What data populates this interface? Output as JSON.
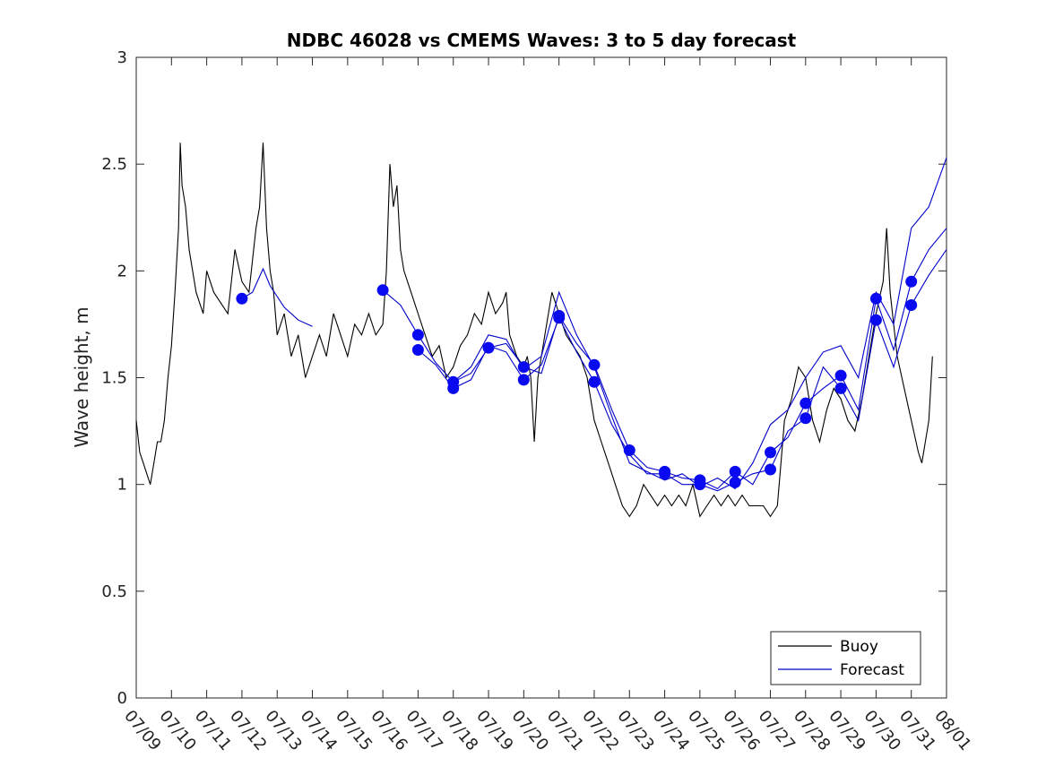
{
  "chart_data": {
    "type": "line",
    "title": "NDBC 46028 vs CMEMS Waves: 3 to 5 day forecast",
    "xlabel": "",
    "ylabel": "Wave height, m",
    "x_ticks": [
      "07/09",
      "07/10",
      "07/11",
      "07/12",
      "07/13",
      "07/14",
      "07/15",
      "07/16",
      "07/17",
      "07/18",
      "07/19",
      "07/20",
      "07/21",
      "07/22",
      "07/23",
      "07/24",
      "07/25",
      "07/26",
      "07/27",
      "07/28",
      "07/29",
      "07/30",
      "07/31",
      "08/01"
    ],
    "y_ticks": [
      "0",
      "0.5",
      "1",
      "1.5",
      "2",
      "2.5",
      "3"
    ],
    "xlim_days": [
      0,
      23
    ],
    "ylim": [
      0,
      3
    ],
    "grid": false,
    "legend_position": "bottom-right",
    "series": [
      {
        "name": "Buoy",
        "color": "#000000",
        "points": [
          [
            0.0,
            1.3
          ],
          [
            0.1,
            1.15
          ],
          [
            0.2,
            1.1
          ],
          [
            0.3,
            1.05
          ],
          [
            0.4,
            1.0
          ],
          [
            0.5,
            1.1
          ],
          [
            0.6,
            1.2
          ],
          [
            0.7,
            1.2
          ],
          [
            0.8,
            1.3
          ],
          [
            0.9,
            1.5
          ],
          [
            1.0,
            1.65
          ],
          [
            1.1,
            1.9
          ],
          [
            1.2,
            2.2
          ],
          [
            1.25,
            2.6
          ],
          [
            1.3,
            2.4
          ],
          [
            1.4,
            2.3
          ],
          [
            1.5,
            2.1
          ],
          [
            1.6,
            2.0
          ],
          [
            1.7,
            1.9
          ],
          [
            1.8,
            1.85
          ],
          [
            1.9,
            1.8
          ],
          [
            2.0,
            2.0
          ],
          [
            2.2,
            1.9
          ],
          [
            2.4,
            1.85
          ],
          [
            2.6,
            1.8
          ],
          [
            2.8,
            2.1
          ],
          [
            3.0,
            1.95
          ],
          [
            3.2,
            1.9
          ],
          [
            3.4,
            2.2
          ],
          [
            3.5,
            2.3
          ],
          [
            3.6,
            2.6
          ],
          [
            3.7,
            2.2
          ],
          [
            3.8,
            2.0
          ],
          [
            3.9,
            1.9
          ],
          [
            4.0,
            1.7
          ],
          [
            4.2,
            1.8
          ],
          [
            4.4,
            1.6
          ],
          [
            4.6,
            1.7
          ],
          [
            4.8,
            1.5
          ],
          [
            5.0,
            1.6
          ],
          [
            5.2,
            1.7
          ],
          [
            5.4,
            1.6
          ],
          [
            5.6,
            1.8
          ],
          [
            5.8,
            1.7
          ],
          [
            6.0,
            1.6
          ],
          [
            6.2,
            1.75
          ],
          [
            6.4,
            1.7
          ],
          [
            6.6,
            1.8
          ],
          [
            6.8,
            1.7
          ],
          [
            7.0,
            1.75
          ],
          [
            7.1,
            2.0
          ],
          [
            7.2,
            2.5
          ],
          [
            7.3,
            2.3
          ],
          [
            7.4,
            2.4
          ],
          [
            7.5,
            2.1
          ],
          [
            7.6,
            2.0
          ],
          [
            7.8,
            1.9
          ],
          [
            8.0,
            1.8
          ],
          [
            8.2,
            1.7
          ],
          [
            8.4,
            1.6
          ],
          [
            8.6,
            1.65
          ],
          [
            8.8,
            1.5
          ],
          [
            9.0,
            1.55
          ],
          [
            9.2,
            1.65
          ],
          [
            9.4,
            1.7
          ],
          [
            9.6,
            1.8
          ],
          [
            9.8,
            1.75
          ],
          [
            10.0,
            1.9
          ],
          [
            10.2,
            1.8
          ],
          [
            10.4,
            1.85
          ],
          [
            10.5,
            1.9
          ],
          [
            10.6,
            1.7
          ],
          [
            10.8,
            1.6
          ],
          [
            11.0,
            1.55
          ],
          [
            11.1,
            1.6
          ],
          [
            11.2,
            1.5
          ],
          [
            11.3,
            1.2
          ],
          [
            11.4,
            1.5
          ],
          [
            11.6,
            1.7
          ],
          [
            11.8,
            1.9
          ],
          [
            12.0,
            1.8
          ],
          [
            12.2,
            1.7
          ],
          [
            12.4,
            1.65
          ],
          [
            12.6,
            1.6
          ],
          [
            12.8,
            1.5
          ],
          [
            13.0,
            1.3
          ],
          [
            13.2,
            1.2
          ],
          [
            13.4,
            1.1
          ],
          [
            13.6,
            1.0
          ],
          [
            13.8,
            0.9
          ],
          [
            14.0,
            0.85
          ],
          [
            14.2,
            0.9
          ],
          [
            14.4,
            1.0
          ],
          [
            14.6,
            0.95
          ],
          [
            14.8,
            0.9
          ],
          [
            15.0,
            0.95
          ],
          [
            15.2,
            0.9
          ],
          [
            15.4,
            0.95
          ],
          [
            15.6,
            0.9
          ],
          [
            15.8,
            1.0
          ],
          [
            16.0,
            0.85
          ],
          [
            16.2,
            0.9
          ],
          [
            16.4,
            0.95
          ],
          [
            16.6,
            0.9
          ],
          [
            16.8,
            0.95
          ],
          [
            17.0,
            0.9
          ],
          [
            17.2,
            0.95
          ],
          [
            17.4,
            0.9
          ],
          [
            17.6,
            0.9
          ],
          [
            17.8,
            0.9
          ],
          [
            18.0,
            0.85
          ],
          [
            18.2,
            0.9
          ],
          [
            18.3,
            1.1
          ],
          [
            18.4,
            1.3
          ],
          [
            18.6,
            1.4
          ],
          [
            18.8,
            1.55
          ],
          [
            19.0,
            1.5
          ],
          [
            19.2,
            1.3
          ],
          [
            19.4,
            1.2
          ],
          [
            19.6,
            1.35
          ],
          [
            19.8,
            1.45
          ],
          [
            20.0,
            1.4
          ],
          [
            20.2,
            1.3
          ],
          [
            20.4,
            1.25
          ],
          [
            20.6,
            1.4
          ],
          [
            20.8,
            1.6
          ],
          [
            21.0,
            1.8
          ],
          [
            21.2,
            1.95
          ],
          [
            21.3,
            2.2
          ],
          [
            21.4,
            1.9
          ],
          [
            21.6,
            1.6
          ],
          [
            21.8,
            1.45
          ],
          [
            22.0,
            1.3
          ],
          [
            22.2,
            1.15
          ],
          [
            22.3,
            1.1
          ],
          [
            22.5,
            1.3
          ],
          [
            22.6,
            1.6
          ]
        ]
      },
      {
        "name": "Forecast",
        "color": "#0000cc",
        "traces": [
          [
            [
              3.0,
              1.87
            ],
            [
              3.3,
              1.9
            ],
            [
              3.6,
              2.01
            ],
            [
              3.8,
              1.93
            ],
            [
              4.2,
              1.83
            ],
            [
              4.6,
              1.77
            ],
            [
              5.0,
              1.74
            ]
          ],
          [
            [
              7.0,
              1.91
            ],
            [
              7.5,
              1.84
            ],
            [
              8.0,
              1.7
            ],
            [
              8.5,
              1.57
            ],
            [
              9.0,
              1.48
            ],
            [
              9.5,
              1.52
            ],
            [
              10.0,
              1.64
            ],
            [
              10.5,
              1.66
            ],
            [
              11.0,
              1.55
            ],
            [
              11.5,
              1.52
            ],
            [
              12.0,
              1.79
            ],
            [
              12.5,
              1.66
            ],
            [
              13.0,
              1.56
            ],
            [
              13.5,
              1.35
            ],
            [
              14.0,
              1.16
            ],
            [
              14.5,
              1.08
            ],
            [
              15.0,
              1.06
            ],
            [
              15.5,
              1.03
            ],
            [
              16.0,
              1.02
            ],
            [
              16.5,
              0.98
            ],
            [
              17.0,
              1.06
            ],
            [
              17.5,
              1.0
            ],
            [
              18.0,
              1.15
            ],
            [
              18.5,
              1.22
            ],
            [
              19.0,
              1.38
            ],
            [
              19.5,
              1.45
            ],
            [
              20.0,
              1.51
            ],
            [
              20.5,
              1.35
            ],
            [
              21.0,
              1.87
            ],
            [
              21.5,
              1.63
            ],
            [
              22.0,
              1.95
            ],
            [
              22.5,
              2.1
            ],
            [
              23.0,
              2.2
            ]
          ],
          [
            [
              8.0,
              1.63
            ],
            [
              8.5,
              1.56
            ],
            [
              9.0,
              1.45
            ],
            [
              9.5,
              1.49
            ],
            [
              10.0,
              1.65
            ],
            [
              10.5,
              1.62
            ],
            [
              11.0,
              1.49
            ],
            [
              11.5,
              1.56
            ],
            [
              12.0,
              1.78
            ],
            [
              12.5,
              1.62
            ],
            [
              13.0,
              1.48
            ],
            [
              13.5,
              1.28
            ],
            [
              14.0,
              1.14
            ],
            [
              14.5,
              1.05
            ],
            [
              15.0,
              1.05
            ],
            [
              15.5,
              1.0
            ],
            [
              16.0,
              1.0
            ],
            [
              16.5,
              0.97
            ],
            [
              17.0,
              1.01
            ],
            [
              17.5,
              1.05
            ],
            [
              18.0,
              1.07
            ],
            [
              18.5,
              1.25
            ],
            [
              19.0,
              1.31
            ],
            [
              19.5,
              1.55
            ],
            [
              20.0,
              1.45
            ],
            [
              20.5,
              1.3
            ],
            [
              21.0,
              1.77
            ],
            [
              21.5,
              1.55
            ],
            [
              22.0,
              1.84
            ],
            [
              22.5,
              1.98
            ],
            [
              23.0,
              2.1
            ]
          ],
          [
            [
              9.0,
              1.48
            ],
            [
              9.5,
              1.55
            ],
            [
              10.0,
              1.7
            ],
            [
              10.5,
              1.68
            ],
            [
              11.0,
              1.54
            ],
            [
              11.5,
              1.6
            ],
            [
              12.0,
              1.9
            ],
            [
              12.5,
              1.7
            ],
            [
              13.0,
              1.55
            ],
            [
              13.5,
              1.32
            ],
            [
              14.0,
              1.1
            ],
            [
              14.5,
              1.06
            ],
            [
              15.0,
              1.02
            ],
            [
              15.5,
              1.05
            ],
            [
              16.0,
              0.99
            ],
            [
              16.5,
              1.03
            ],
            [
              17.0,
              0.98
            ],
            [
              17.5,
              1.1
            ],
            [
              18.0,
              1.28
            ],
            [
              18.5,
              1.35
            ],
            [
              19.0,
              1.5
            ],
            [
              19.5,
              1.62
            ],
            [
              20.0,
              1.65
            ],
            [
              20.5,
              1.5
            ],
            [
              21.0,
              1.9
            ],
            [
              21.5,
              1.75
            ],
            [
              22.0,
              2.2
            ],
            [
              22.5,
              2.3
            ],
            [
              23.0,
              2.53
            ]
          ]
        ],
        "markers": [
          [
            3.0,
            1.87
          ],
          [
            7.0,
            1.91
          ],
          [
            8.0,
            1.7
          ],
          [
            8.0,
            1.63
          ],
          [
            9.0,
            1.48
          ],
          [
            9.0,
            1.45
          ],
          [
            10.0,
            1.64
          ],
          [
            11.0,
            1.55
          ],
          [
            11.0,
            1.49
          ],
          [
            12.0,
            1.79
          ],
          [
            12.0,
            1.78
          ],
          [
            13.0,
            1.56
          ],
          [
            13.0,
            1.48
          ],
          [
            14.0,
            1.16
          ],
          [
            15.0,
            1.06
          ],
          [
            15.0,
            1.05
          ],
          [
            16.0,
            1.02
          ],
          [
            16.0,
            1.0
          ],
          [
            17.0,
            1.06
          ],
          [
            17.0,
            1.01
          ],
          [
            18.0,
            1.15
          ],
          [
            18.0,
            1.07
          ],
          [
            19.0,
            1.38
          ],
          [
            19.0,
            1.31
          ],
          [
            20.0,
            1.51
          ],
          [
            20.0,
            1.45
          ],
          [
            21.0,
            1.87
          ],
          [
            21.0,
            1.77
          ],
          [
            22.0,
            1.95
          ],
          [
            22.0,
            1.84
          ]
        ]
      }
    ]
  }
}
